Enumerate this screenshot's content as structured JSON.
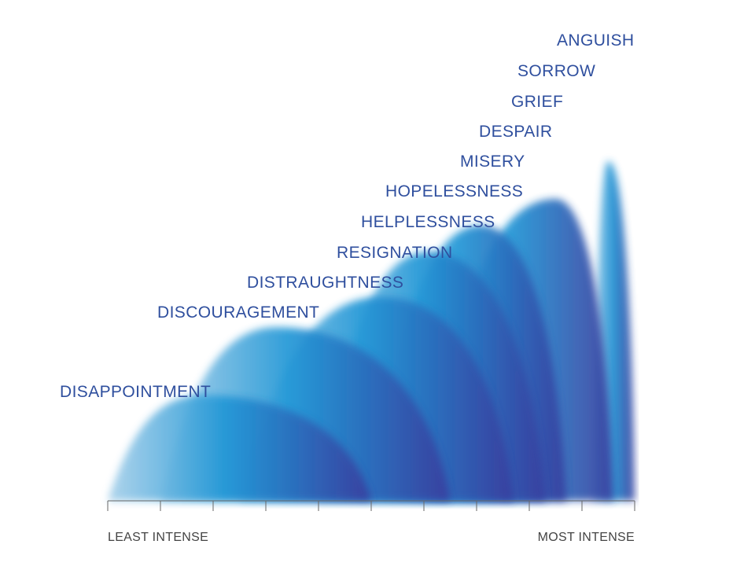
{
  "colors": {
    "label": "#2f4f9e",
    "axis": "#666666",
    "axis_text": "#444444",
    "wave_light": "#a9d1ea",
    "wave_mid": "#1f96d6",
    "wave_dark": "#3a3d9e"
  },
  "chart_data": {
    "type": "area",
    "title": "",
    "xlabel": "",
    "ylabel": "",
    "x_scale": "ordinal intensity (10 tick intervals)",
    "x_end_labels": {
      "left": "LEAST INTENSE",
      "right": "MOST INTENSE"
    },
    "tick_count": 11,
    "xlim": [
      0,
      10
    ],
    "ylim": [
      0,
      10
    ],
    "grid": false,
    "legend": "none",
    "series": [
      {
        "name": "DISAPPOINTMENT",
        "start": 0.0,
        "peak_x": 1.8,
        "end": 5.0,
        "peak": 2.8
      },
      {
        "name": "DISCOURAGEMENT",
        "start": 1.0,
        "peak_x": 3.2,
        "end": 6.5,
        "peak": 4.6
      },
      {
        "name": "DISTRAUGHTNESS",
        "start": 2.5,
        "peak_x": 5.2,
        "end": 7.7,
        "peak": 5.4
      },
      {
        "name": "RESIGNATION",
        "start": 4.0,
        "peak_x": 6.1,
        "end": 8.3,
        "peak": 6.6
      },
      {
        "name": "HELPLESSNESS",
        "start": 5.0,
        "peak_x": 7.1,
        "end": 8.7,
        "peak": 7.3
      },
      {
        "name": "HOPELESSNESS",
        "start": 6.0,
        "peak_x": 8.5,
        "end": 9.6,
        "peak": 8.0
      },
      {
        "name": "MISERY",
        "start": 9.2,
        "peak_x": 9.5,
        "end": 10.0,
        "peak": 9.0
      },
      {
        "name": "DESPAIR",
        "start": null,
        "peak_x": null,
        "end": null,
        "peak": null
      },
      {
        "name": "GRIEF",
        "start": null,
        "peak_x": null,
        "end": null,
        "peak": null
      },
      {
        "name": "SORROW",
        "start": null,
        "peak_x": null,
        "end": null,
        "peak": null
      },
      {
        "name": "ANGUISH",
        "start": null,
        "peak_x": null,
        "end": null,
        "peak": null
      }
    ]
  }
}
